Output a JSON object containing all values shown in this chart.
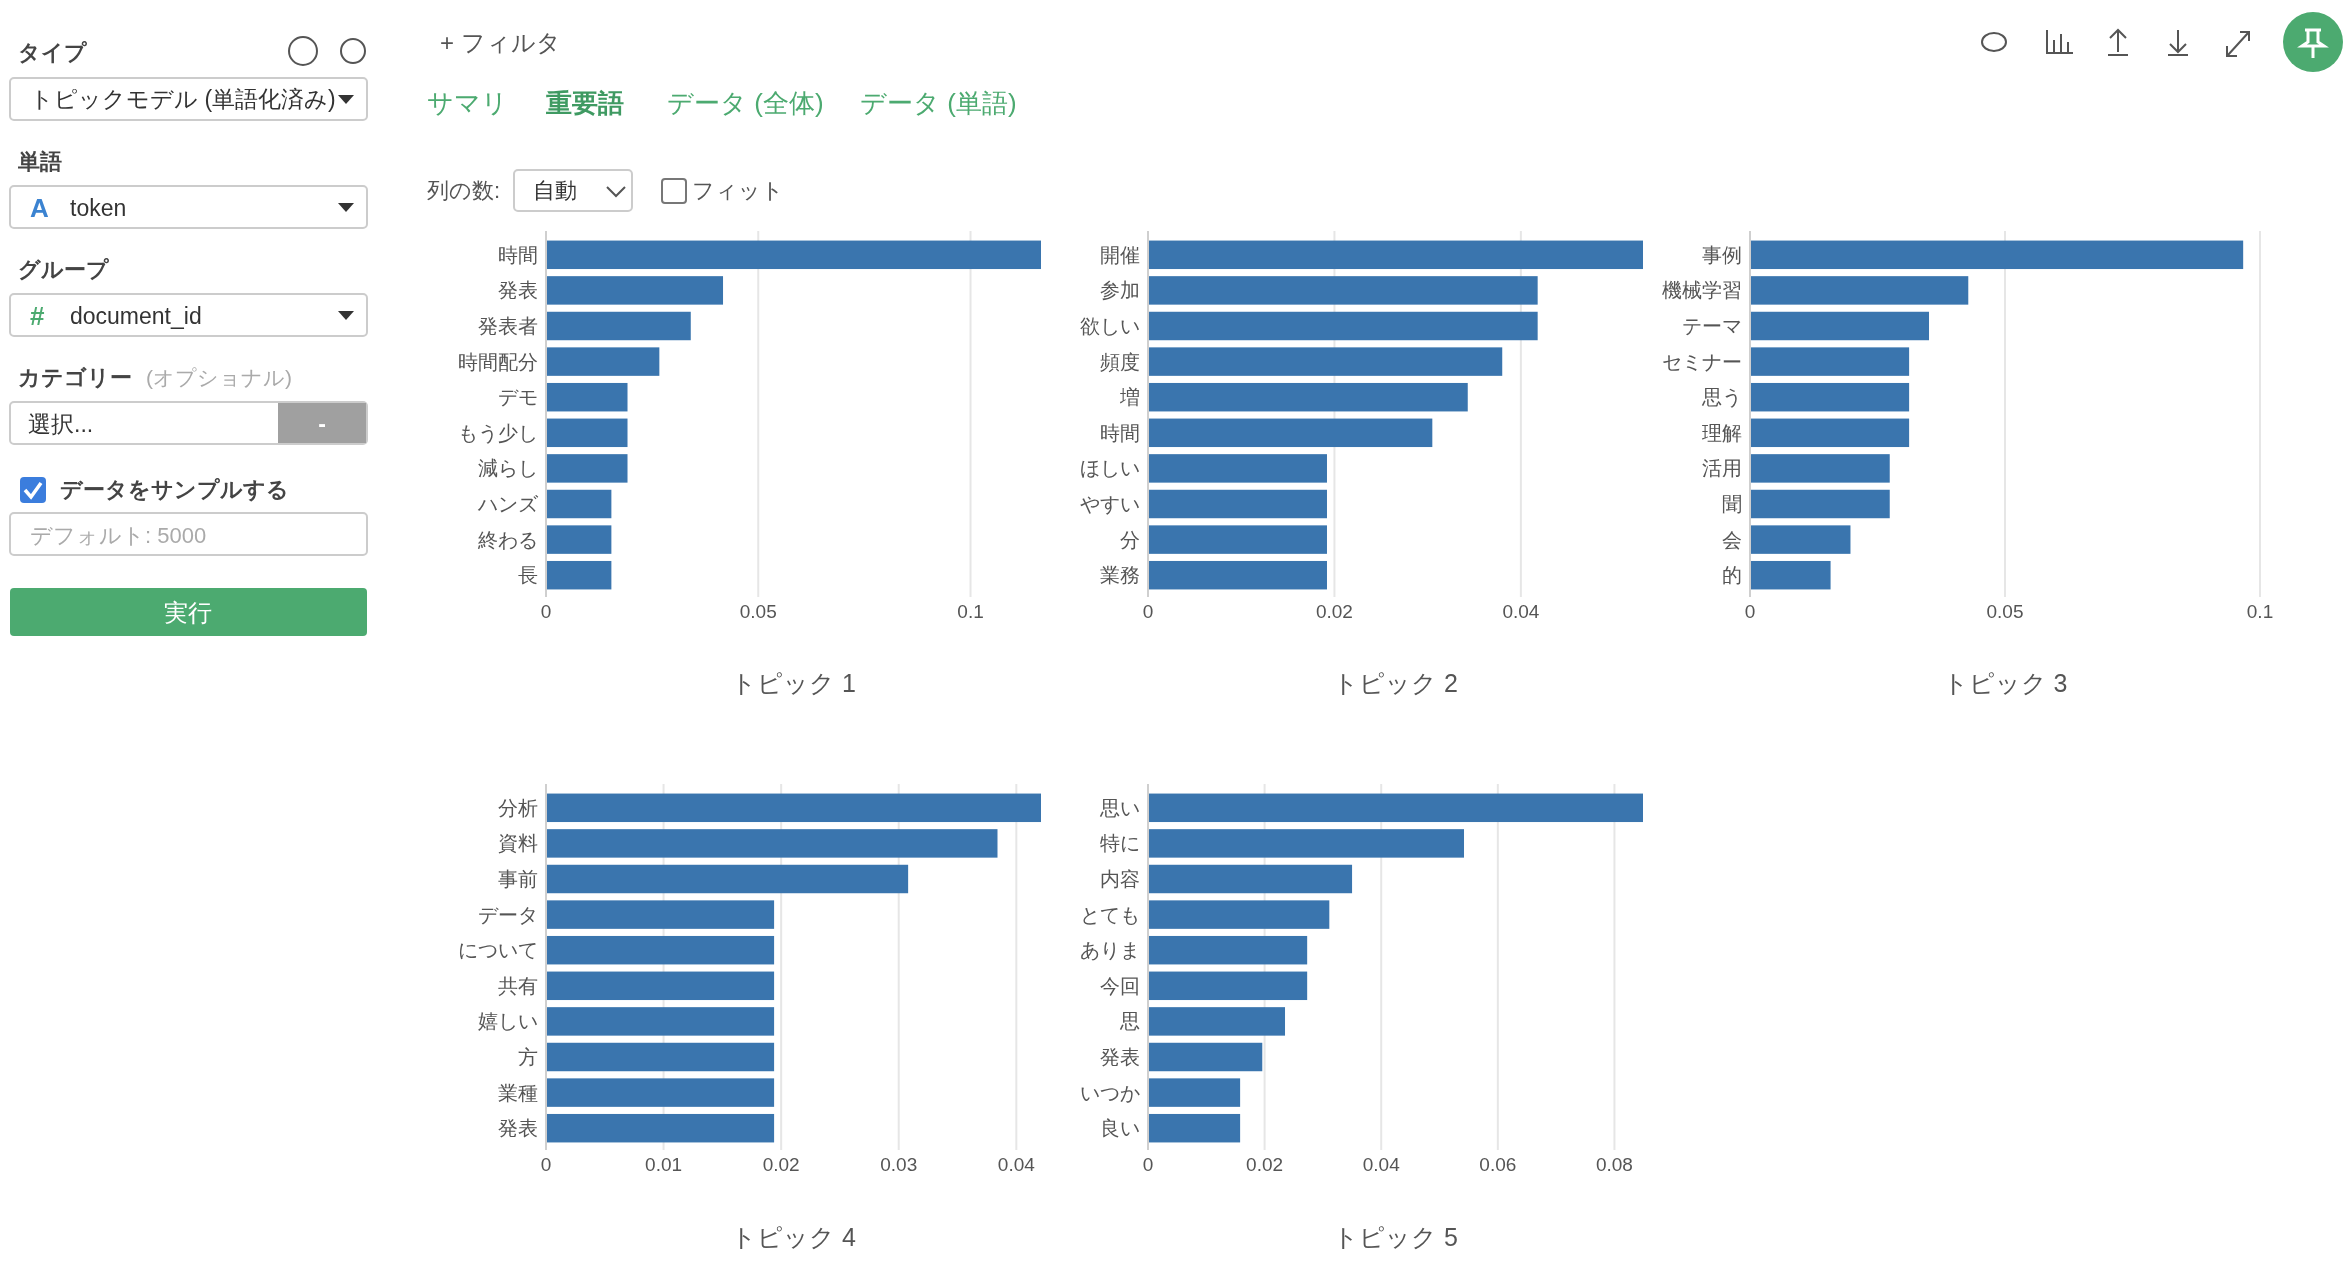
{
  "chart_data": [
    {
      "type": "bar",
      "orientation": "horizontal",
      "categories": [
        "時間",
        "発表",
        "発表者",
        "時間配分",
        "デモ",
        "もう少し",
        "減らし",
        "ハンズ",
        "終わる",
        "長"
      ],
      "values": [
        0.1166,
        0.0417,
        0.0341,
        0.0267,
        0.0192,
        0.0192,
        0.0192,
        0.0154,
        0.0154,
        0.0154
      ],
      "color": "#3a75ae",
      "xlim": [
        0,
        0.1166
      ],
      "xticks": [
        0,
        0.05,
        0.1
      ],
      "xlabel": "トピック 1",
      "grid": "x"
    },
    {
      "type": "bar",
      "orientation": "horizontal",
      "categories": [
        "開催",
        "参加",
        "欲しい",
        "頻度",
        "増",
        "時間",
        "ほしい",
        "やすい",
        "分",
        "業務"
      ],
      "values": [
        0.0531,
        0.0418,
        0.0418,
        0.038,
        0.0343,
        0.0305,
        0.0192,
        0.0192,
        0.0192,
        0.0192
      ],
      "color": "#3a75ae",
      "xlim": [
        0,
        0.0531
      ],
      "xticks": [
        0,
        0.02,
        0.04
      ],
      "xlabel": "トピック 2",
      "grid": "x"
    },
    {
      "type": "bar",
      "orientation": "horizontal",
      "categories": [
        "事例",
        "機械学習",
        "テーマ",
        "セミナー",
        "思う",
        "理解",
        "活用",
        "聞",
        "会",
        "的"
      ],
      "values": [
        0.0967,
        0.0428,
        0.0351,
        0.0312,
        0.0312,
        0.0312,
        0.0274,
        0.0274,
        0.0197,
        0.0158
      ],
      "color": "#3a75ae",
      "xlim": [
        0,
        0.1
      ],
      "xticks": [
        0,
        0.05,
        0.1
      ],
      "xlabel": "トピック 3",
      "grid": "x"
    },
    {
      "type": "bar",
      "orientation": "horizontal",
      "categories": [
        "分析",
        "資料",
        "事前",
        "データ",
        "について",
        "共有",
        "嬉しい",
        "方",
        "業種",
        "発表"
      ],
      "values": [
        0.0421,
        0.0384,
        0.0308,
        0.0194,
        0.0194,
        0.0194,
        0.0194,
        0.0194,
        0.0194,
        0.0194
      ],
      "color": "#3a75ae",
      "xlim": [
        0,
        0.0421
      ],
      "xticks": [
        0,
        0.01,
        0.02,
        0.03,
        0.04
      ],
      "xlabel": "トピック 4",
      "grid": "x"
    },
    {
      "type": "bar",
      "orientation": "horizontal",
      "categories": [
        "思い",
        "特に",
        "内容",
        "とても",
        "ありま",
        "今回",
        "思",
        "発表",
        "いつか",
        "良い"
      ],
      "values": [
        0.0849,
        0.0542,
        0.035,
        0.0311,
        0.0273,
        0.0273,
        0.0235,
        0.0196,
        0.0158,
        0.0158
      ],
      "color": "#3a75ae",
      "xlim": [
        0,
        0.0849
      ],
      "xticks": [
        0,
        0.02,
        0.04,
        0.06,
        0.08
      ],
      "xlabel": "トピック 5",
      "grid": "x"
    },
    {
      "type": "other",
      "annotations": [
        "タイプ",
        "トピックモデル (単語化済み)",
        "単語",
        "A",
        "token",
        "グループ",
        "#",
        "document_id",
        "カテゴリー",
        "(オプショナル)",
        "選択...",
        "-",
        "データをサンプルする",
        "デフォルト: 5000",
        "実行",
        "+ フィルタ",
        "サマリ",
        "重要語",
        "データ (全体)",
        "データ (単語)",
        "列の数:",
        "自動",
        "フィット"
      ]
    }
  ]
}
